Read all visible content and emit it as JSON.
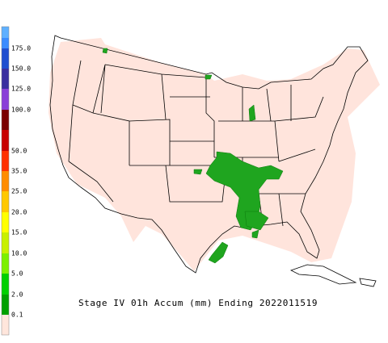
{
  "colorbar": {
    "labels": [
      "175.0",
      "150.0",
      "125.0",
      "100.0",
      "50.0",
      "35.0",
      "25.0",
      "20.0",
      "15.0",
      "10.0",
      "5.0",
      "2.0",
      "0.1"
    ]
  },
  "title": "Stage IV 01h Accum (mm) Ending 2022011519"
}
